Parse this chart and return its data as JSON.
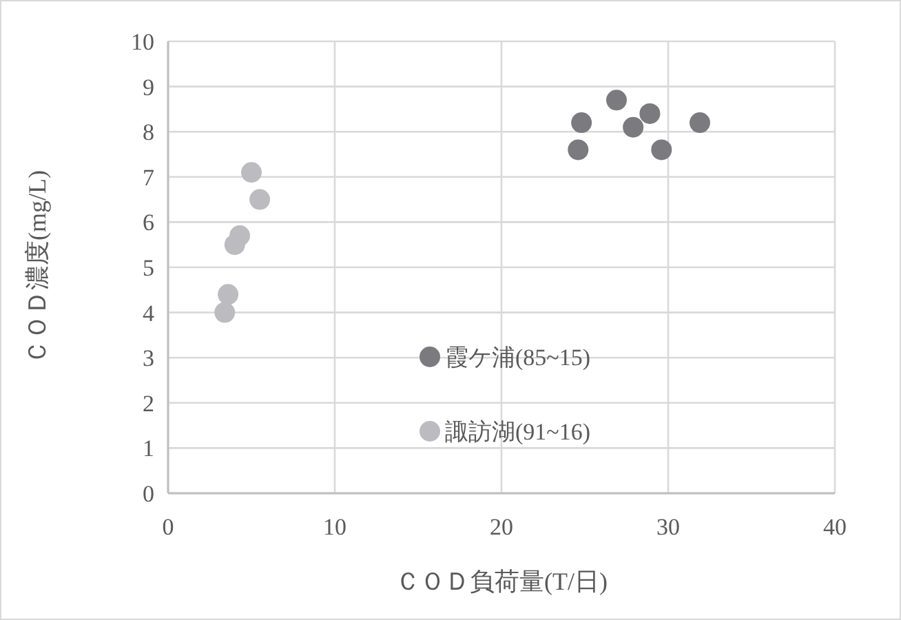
{
  "chart_data": {
    "type": "scatter",
    "xlabel": "ＣＯＤ負荷量(T/日)",
    "ylabel": "ＣＯＤ濃度(mg/L)",
    "xlim": [
      0,
      40
    ],
    "xticks": [
      0,
      10,
      20,
      30,
      40
    ],
    "ylim": [
      0,
      10
    ],
    "yticks": [
      0,
      1,
      2,
      3,
      4,
      5,
      6,
      7,
      8,
      9,
      10
    ],
    "grid": true,
    "legend": "bottom",
    "marker": "circle",
    "series": [
      {
        "name": "霞ケ浦(85~15)",
        "color": "#7a7a7f",
        "x": [
          24.6,
          24.8,
          26.9,
          27.9,
          28.9,
          29.6,
          31.9
        ],
        "values": [
          7.6,
          8.2,
          8.7,
          8.1,
          8.4,
          7.6,
          8.2
        ]
      },
      {
        "name": "諏訪湖(91~16)",
        "color": "#bcbcc0",
        "x": [
          3.4,
          3.6,
          4.0,
          4.3,
          5.0,
          5.5
        ],
        "values": [
          4.0,
          4.4,
          5.5,
          5.7,
          7.1,
          6.5
        ]
      }
    ]
  }
}
